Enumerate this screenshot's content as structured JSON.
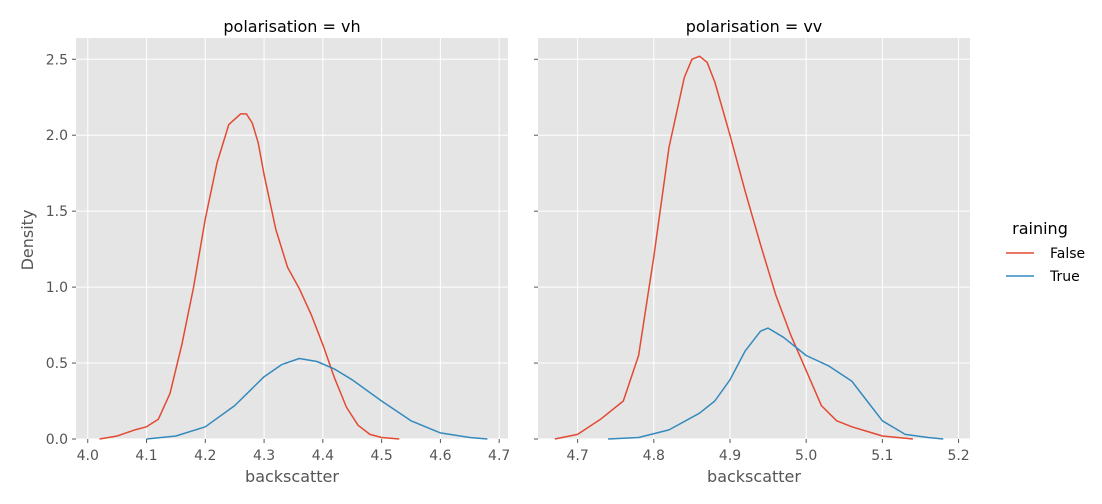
{
  "chart_data": [
    {
      "type": "line",
      "title": "polarisation = vh",
      "xlabel": "backscatter",
      "ylabel": "Density",
      "xlim": [
        3.98,
        4.715
      ],
      "ylim": [
        0,
        2.64
      ],
      "xticks": [
        4.0,
        4.1,
        4.2,
        4.3,
        4.4,
        4.5,
        4.6,
        4.7
      ],
      "xtick_labels": [
        "4.0",
        "4.1",
        "4.2",
        "4.3",
        "4.4",
        "4.5",
        "4.6",
        "4.7"
      ],
      "yticks": [
        0.0,
        0.5,
        1.0,
        1.5,
        2.0,
        2.5
      ],
      "ytick_labels": [
        "0.0",
        "0.5",
        "1.0",
        "1.5",
        "2.0",
        "2.5"
      ],
      "grid": true,
      "series": [
        {
          "name": "False",
          "color": "#E24A33",
          "x": [
            4.02,
            4.05,
            4.08,
            4.1,
            4.12,
            4.14,
            4.16,
            4.18,
            4.2,
            4.22,
            4.24,
            4.26,
            4.27,
            4.28,
            4.29,
            4.3,
            4.32,
            4.34,
            4.36,
            4.38,
            4.4,
            4.42,
            4.44,
            4.46,
            4.48,
            4.5,
            4.53
          ],
          "y": [
            0.0,
            0.02,
            0.06,
            0.08,
            0.13,
            0.3,
            0.62,
            1.0,
            1.45,
            1.82,
            2.07,
            2.14,
            2.14,
            2.08,
            1.95,
            1.74,
            1.38,
            1.13,
            0.99,
            0.82,
            0.62,
            0.4,
            0.21,
            0.09,
            0.03,
            0.01,
            0.0
          ]
        },
        {
          "name": "True",
          "color": "#348ABD",
          "x": [
            4.1,
            4.15,
            4.2,
            4.25,
            4.3,
            4.33,
            4.36,
            4.39,
            4.42,
            4.45,
            4.5,
            4.55,
            4.6,
            4.65,
            4.68
          ],
          "y": [
            0.0,
            0.02,
            0.08,
            0.22,
            0.41,
            0.49,
            0.53,
            0.51,
            0.46,
            0.39,
            0.25,
            0.12,
            0.04,
            0.01,
            0.0
          ]
        }
      ]
    },
    {
      "type": "line",
      "title": "polarisation = vv",
      "xlabel": "backscatter",
      "ylabel": "",
      "xlim": [
        4.648,
        5.215
      ],
      "ylim": [
        0,
        2.64
      ],
      "xticks": [
        4.7,
        4.8,
        4.9,
        5.0,
        5.1,
        5.2
      ],
      "xtick_labels": [
        "4.7",
        "4.8",
        "4.9",
        "5.0",
        "5.1",
        "5.2"
      ],
      "yticks": [
        0.0,
        0.5,
        1.0,
        1.5,
        2.0,
        2.5
      ],
      "ytick_labels": [
        "",
        "",
        "",
        "",
        "",
        ""
      ],
      "grid": true,
      "series": [
        {
          "name": "False",
          "color": "#E24A33",
          "x": [
            4.67,
            4.7,
            4.73,
            4.76,
            4.78,
            4.8,
            4.82,
            4.84,
            4.85,
            4.86,
            4.87,
            4.88,
            4.9,
            4.92,
            4.94,
            4.96,
            4.98,
            5.0,
            5.02,
            5.04,
            5.06,
            5.08,
            5.1,
            5.12,
            5.14
          ],
          "y": [
            0.0,
            0.03,
            0.13,
            0.25,
            0.55,
            1.2,
            1.92,
            2.38,
            2.5,
            2.52,
            2.48,
            2.35,
            2.0,
            1.63,
            1.28,
            0.95,
            0.68,
            0.45,
            0.22,
            0.12,
            0.08,
            0.05,
            0.02,
            0.01,
            0.0
          ]
        },
        {
          "name": "True",
          "color": "#348ABD",
          "x": [
            4.74,
            4.78,
            4.82,
            4.86,
            4.88,
            4.9,
            4.92,
            4.94,
            4.95,
            4.97,
            5.0,
            5.03,
            5.06,
            5.08,
            5.1,
            5.13,
            5.16,
            5.18
          ],
          "y": [
            0.0,
            0.01,
            0.06,
            0.17,
            0.25,
            0.39,
            0.58,
            0.71,
            0.73,
            0.67,
            0.55,
            0.48,
            0.38,
            0.25,
            0.12,
            0.03,
            0.01,
            0.0
          ]
        }
      ]
    }
  ],
  "legend": {
    "title": "raining",
    "placement": "right",
    "items": [
      {
        "label": "False",
        "color": "#E24A33"
      },
      {
        "label": "True",
        "color": "#348ABD"
      }
    ]
  },
  "colors": {
    "panel_bg": "#E5E5E5",
    "grid": "#FFFFFF",
    "text": "#555555"
  }
}
